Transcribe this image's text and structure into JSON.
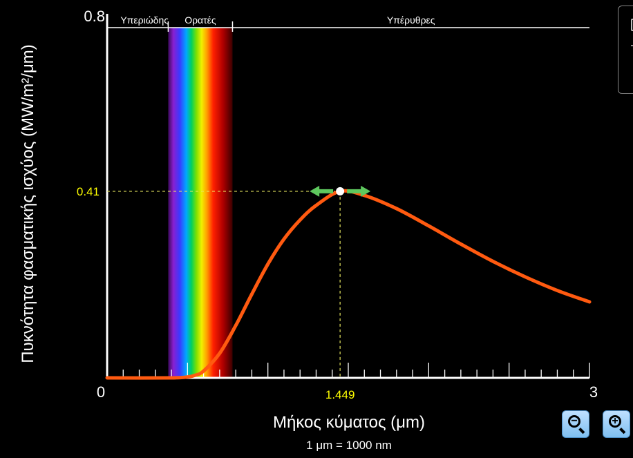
{
  "bands": {
    "uv": "Υπεριώδης",
    "visible": "Ορατές",
    "ir": "Υπέρυθρες"
  },
  "readout": {
    "peak_x": "1.449",
    "peak_y": "0.41"
  },
  "unit_note": "1 μm  =  1000 nm",
  "colors": {
    "curve": "#ff5a10",
    "readout": "#ffff00",
    "arrow": "#5ec85e",
    "guide": "#e8e860"
  },
  "icons": {
    "zoom_out": "zoom-out-icon",
    "zoom_in": "zoom-in-icon",
    "zoom_out_symbol": "−",
    "zoom_in_symbol": "+"
  },
  "chart_data": {
    "type": "line",
    "xlabel": "Μήκος κύματος (μm)",
    "ylabel": "Πυκνότητα φασματικής ισχύος (MW/m²/μm)",
    "xlim": [
      0,
      3
    ],
    "ylim": [
      0,
      0.8
    ],
    "x_tick_labels": [
      "0",
      "3"
    ],
    "y_tick_labels": [
      "0.8"
    ],
    "visible_band_um": [
      0.38,
      0.78
    ],
    "band_boundaries_um": [
      0.38,
      0.78
    ],
    "marker": {
      "x": 1.449,
      "y": 0.41
    },
    "grid": false,
    "series": [
      {
        "x": [
          0,
          0.4,
          0.5,
          0.55,
          0.6,
          0.7,
          0.8,
          0.9,
          1.0,
          1.1,
          1.2,
          1.3,
          1.449,
          1.6,
          1.8,
          2.0,
          2.2,
          2.4,
          2.6,
          2.8,
          3.0
        ],
        "values": [
          0,
          0,
          0.002,
          0.006,
          0.015,
          0.054,
          0.115,
          0.184,
          0.25,
          0.305,
          0.347,
          0.379,
          0.41,
          0.401,
          0.372,
          0.334,
          0.294,
          0.256,
          0.222,
          0.192,
          0.167
        ]
      }
    ]
  }
}
